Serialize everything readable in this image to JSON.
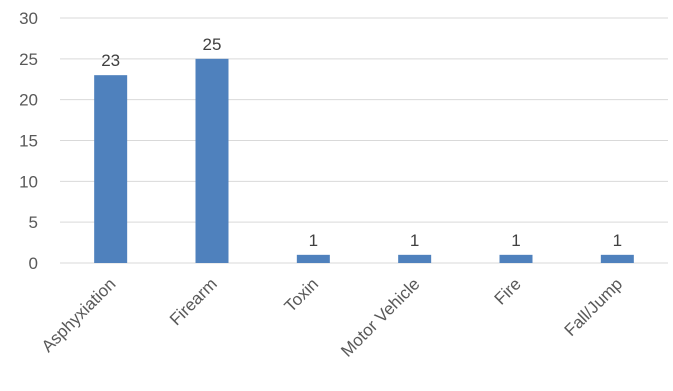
{
  "chart_data": {
    "type": "bar",
    "title": "",
    "xlabel": "",
    "ylabel": "",
    "categories": [
      "Asphyxiation",
      "Firearm",
      "Toxin",
      "Motor Vehicle",
      "Fire",
      "Fall/Jump"
    ],
    "values": [
      23,
      25,
      1,
      1,
      1,
      1
    ],
    "ylim": [
      0,
      30
    ],
    "yticks": [
      0,
      5,
      10,
      15,
      20,
      25,
      30
    ],
    "grid": true,
    "legend": "none",
    "bar_color": "#4f81bd",
    "data_labels": true
  }
}
